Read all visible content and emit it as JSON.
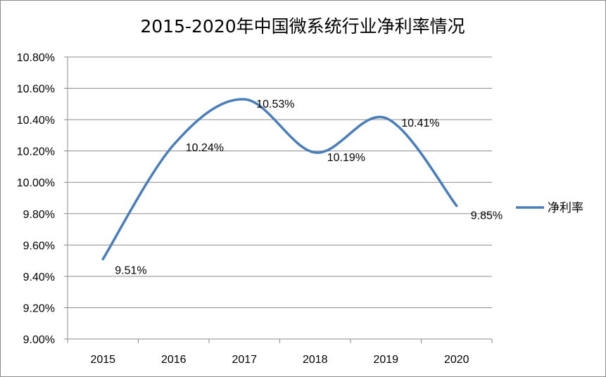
{
  "chart_data": {
    "type": "line",
    "title": "2015-2020年中国微系统行业净利率情况",
    "categories": [
      "2015",
      "2016",
      "2017",
      "2018",
      "2019",
      "2020"
    ],
    "series": [
      {
        "name": "净利率",
        "values": [
          9.51,
          10.24,
          10.53,
          10.19,
          10.41,
          9.85
        ],
        "labels": [
          "9.51%",
          "10.24%",
          "10.53%",
          "10.19%",
          "10.41%",
          "9.85%"
        ],
        "color": "#4a7ebb"
      }
    ],
    "ylim": [
      9.0,
      10.8
    ],
    "y_ticks": [
      "9.00%",
      "9.20%",
      "9.40%",
      "9.60%",
      "9.80%",
      "10.00%",
      "10.20%",
      "10.40%",
      "10.60%",
      "10.80%"
    ],
    "grid": "horizontal",
    "smooth": true,
    "legend_position": "right"
  }
}
